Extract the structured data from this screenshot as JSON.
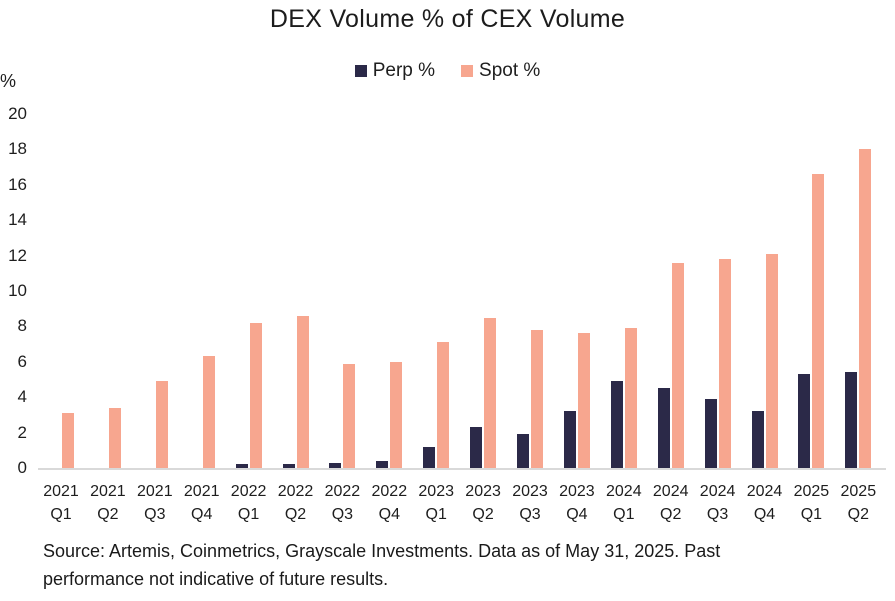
{
  "title": "DEX Volume % of CEX Volume",
  "chart_data": {
    "type": "bar",
    "title": "DEX Volume % of CEX Volume",
    "xlabel": "",
    "ylabel": "%",
    "ylim": [
      0,
      20
    ],
    "ytick_step": 2,
    "grid": false,
    "legend_position": "top-center",
    "axis_line_color": "#d9d9d9",
    "text_color": "#1e1e1e",
    "categories": [
      "2021 Q1",
      "2021 Q2",
      "2021 Q3",
      "2021 Q4",
      "2022 Q1",
      "2022 Q2",
      "2022 Q3",
      "2022 Q4",
      "2023 Q1",
      "2023 Q2",
      "2023 Q3",
      "2023 Q4",
      "2024 Q1",
      "2024 Q2",
      "2024 Q3",
      "2024 Q4",
      "2025 Q1",
      "2025 Q2"
    ],
    "series": [
      {
        "name": "Perp %",
        "color": "#2b2948",
        "values": [
          0,
          0,
          0,
          0,
          0.2,
          0.2,
          0.3,
          0.4,
          1.2,
          2.3,
          1.9,
          3.2,
          4.9,
          4.5,
          3.9,
          3.2,
          5.3,
          5.4
        ]
      },
      {
        "name": "Spot %",
        "color": "#f7a68f",
        "values": [
          3.1,
          3.4,
          4.9,
          6.3,
          8.2,
          8.6,
          5.9,
          6.0,
          7.1,
          8.5,
          7.8,
          7.6,
          7.9,
          11.6,
          11.8,
          12.1,
          16.6,
          18.0
        ]
      }
    ]
  },
  "footer": {
    "line1": "Source: Artemis, Coinmetrics, Grayscale Investments. Data as of May 31, 2025. Past",
    "line2": "performance not indicative of future results."
  }
}
